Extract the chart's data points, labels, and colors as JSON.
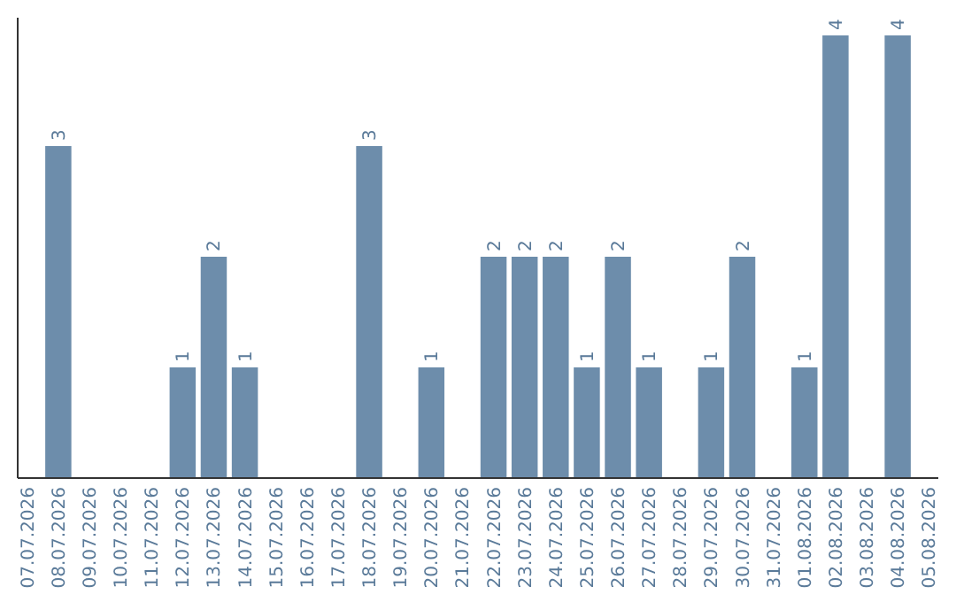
{
  "chart_data": {
    "type": "bar",
    "categories": [
      "07.07.2026",
      "08.07.2026",
      "09.07.2026",
      "10.07.2026",
      "11.07.2026",
      "12.07.2026",
      "13.07.2026",
      "14.07.2026",
      "15.07.2026",
      "16.07.2026",
      "17.07.2026",
      "18.07.2026",
      "19.07.2026",
      "20.07.2026",
      "21.07.2026",
      "22.07.2026",
      "23.07.2026",
      "24.07.2026",
      "25.07.2026",
      "26.07.2026",
      "27.07.2026",
      "28.07.2026",
      "29.07.2026",
      "30.07.2026",
      "31.07.2026",
      "01.08.2026",
      "02.08.2026",
      "03.08.2026",
      "04.08.2026",
      "05.08.2026"
    ],
    "values": [
      0,
      3,
      0,
      0,
      0,
      1,
      2,
      1,
      0,
      0,
      0,
      3,
      0,
      1,
      0,
      2,
      2,
      2,
      1,
      2,
      1,
      0,
      1,
      2,
      0,
      1,
      4,
      0,
      4,
      0
    ],
    "value_labels": [
      null,
      "3",
      null,
      null,
      null,
      "1",
      "2",
      "1",
      null,
      null,
      null,
      "3",
      null,
      "1",
      null,
      "2",
      "2",
      "2",
      "1",
      "2",
      "1",
      null,
      "1",
      "2",
      null,
      "1",
      "4",
      null,
      "4",
      null
    ],
    "color": "#6d8dab",
    "tick_labels": "x"
  }
}
